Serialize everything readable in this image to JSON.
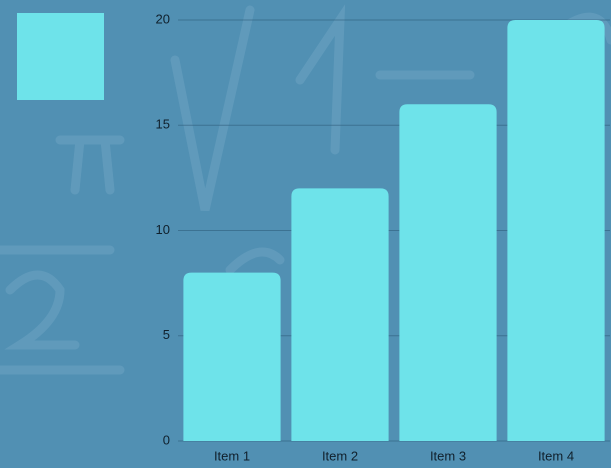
{
  "chart_data": {
    "type": "bar",
    "categories": [
      "Item 1",
      "Item 2",
      "Item 3",
      "Item 4"
    ],
    "values": [
      8,
      12,
      16,
      20
    ],
    "color": "#6ee3ea",
    "ylim": [
      0,
      20
    ],
    "yticks": [
      0,
      5,
      10,
      15,
      20
    ],
    "grid": true,
    "legend": "top-left"
  }
}
